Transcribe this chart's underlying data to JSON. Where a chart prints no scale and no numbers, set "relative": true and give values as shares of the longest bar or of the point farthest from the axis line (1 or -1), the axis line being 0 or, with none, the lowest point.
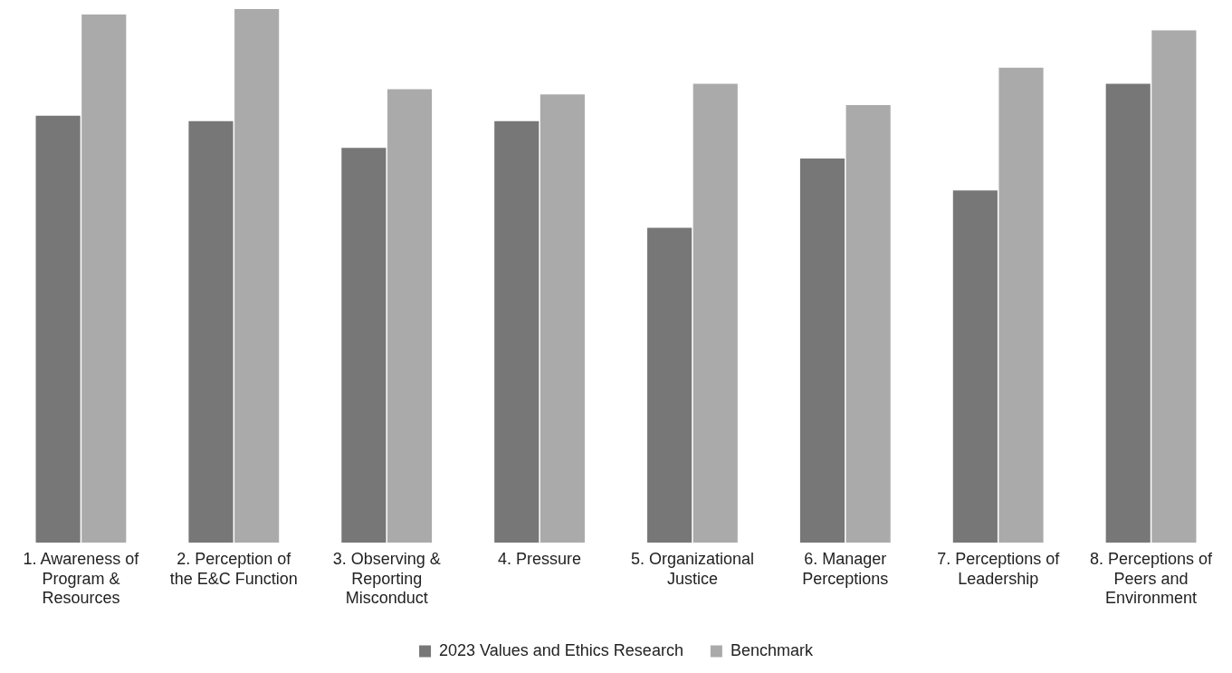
{
  "chart_data": {
    "type": "bar",
    "relative": true,
    "categories": [
      "1. Awareness of Program & Resources",
      "2. Perception of the E&C Function",
      "3. Observing & Reporting Misconduct",
      "4. Pressure",
      "5. Organizational Justice",
      "6. Manager Perceptions",
      "7. Perceptions of Leadership",
      "8. Perceptions of Peers and Environment"
    ],
    "series": [
      {
        "name": "2023 Values and Ethics Research",
        "color": "#777777",
        "values": [
          0.8,
          0.79,
          0.74,
          0.79,
          0.59,
          0.72,
          0.66,
          0.86
        ]
      },
      {
        "name": "Benchmark",
        "color": "#aaaaaa",
        "values": [
          0.99,
          1,
          0.85,
          0.84,
          0.86,
          0.82,
          0.89,
          0.96
        ]
      }
    ],
    "legend": "bottom",
    "grid": false
  }
}
